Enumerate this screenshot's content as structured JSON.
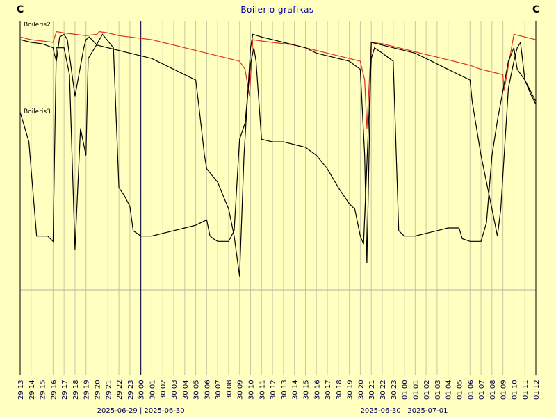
{
  "chart_data": {
    "type": "line",
    "title": "Boilerio grafikas",
    "corner_left": "C",
    "corner_right": "C",
    "xlabel": "",
    "ylabel": "",
    "grid": true,
    "x_ticks": [
      "29 13",
      "29 14",
      "29 15",
      "29 16",
      "29 17",
      "29 18",
      "29 19",
      "29 20",
      "29 21",
      "29 22",
      "29 23",
      "30 00",
      "30 01",
      "30 02",
      "30 03",
      "30 04",
      "30 05",
      "30 06",
      "30 07",
      "30 08",
      "30 09",
      "30 10",
      "30 11",
      "30 12",
      "30 13",
      "30 14",
      "30 15",
      "30 16",
      "30 17",
      "30 18",
      "30 19",
      "30 20",
      "30 21",
      "30 22",
      "30 23",
      "01 00",
      "01 01",
      "01 02",
      "01 03",
      "01 04",
      "01 05",
      "01 06",
      "01 07",
      "01 08",
      "01 09",
      "01 10",
      "01 11",
      "01 12"
    ],
    "day_markers": [
      {
        "at_hour": 11,
        "label": "2025-06-29 | 2025-06-30"
      },
      {
        "at_hour": 35,
        "label": "2025-06-30 | 2025-07-01"
      }
    ],
    "series": [
      {
        "name": "Boileris2",
        "color": "#e03020",
        "points": [
          [
            0,
            0.94
          ],
          [
            1,
            0.93
          ],
          [
            2,
            0.925
          ],
          [
            3,
            0.92
          ],
          [
            3.3,
            0.96
          ],
          [
            4,
            0.955
          ],
          [
            5,
            0.95
          ],
          [
            6,
            0.945
          ],
          [
            7,
            0.95
          ],
          [
            7.2,
            0.96
          ],
          [
            8,
            0.955
          ],
          [
            9,
            0.945
          ],
          [
            10,
            0.94
          ],
          [
            11,
            0.935
          ],
          [
            12,
            0.93
          ],
          [
            13,
            0.92
          ],
          [
            14,
            0.91
          ],
          [
            15,
            0.9
          ],
          [
            16,
            0.89
          ],
          [
            17,
            0.88
          ],
          [
            18,
            0.87
          ],
          [
            19,
            0.86
          ],
          [
            20,
            0.85
          ],
          [
            20.5,
            0.82
          ],
          [
            20.9,
            0.72
          ],
          [
            21.2,
            0.93
          ],
          [
            22,
            0.925
          ],
          [
            23,
            0.92
          ],
          [
            24,
            0.915
          ],
          [
            25,
            0.91
          ],
          [
            26,
            0.9
          ],
          [
            27,
            0.89
          ],
          [
            28,
            0.88
          ],
          [
            29,
            0.87
          ],
          [
            30,
            0.86
          ],
          [
            31,
            0.85
          ],
          [
            31.4,
            0.78
          ],
          [
            31.6,
            0.6
          ],
          [
            32,
            0.92
          ],
          [
            33,
            0.915
          ],
          [
            34,
            0.905
          ],
          [
            35,
            0.895
          ],
          [
            36,
            0.885
          ],
          [
            37,
            0.875
          ],
          [
            38,
            0.865
          ],
          [
            39,
            0.855
          ],
          [
            40,
            0.845
          ],
          [
            41,
            0.835
          ],
          [
            42,
            0.82
          ],
          [
            43,
            0.81
          ],
          [
            44,
            0.8
          ],
          [
            44.1,
            0.74
          ],
          [
            45,
            0.95
          ],
          [
            46,
            0.94
          ],
          [
            47,
            0.93
          ]
        ]
      },
      {
        "name": "Boileris3",
        "color": "#000000",
        "points": [
          [
            0,
            0.93
          ],
          [
            1,
            0.92
          ],
          [
            2,
            0.915
          ],
          [
            3,
            0.9
          ],
          [
            3.1,
            0.88
          ],
          [
            3.3,
            0.85
          ],
          [
            3.6,
            0.94
          ],
          [
            4,
            0.95
          ],
          [
            4.3,
            0.93
          ],
          [
            5,
            0.72
          ],
          [
            5.8,
            0.9
          ],
          [
            6,
            0.93
          ],
          [
            6.3,
            0.94
          ],
          [
            7,
            0.91
          ],
          [
            8,
            0.9
          ],
          [
            9,
            0.89
          ],
          [
            10,
            0.88
          ],
          [
            11,
            0.87
          ],
          [
            12,
            0.86
          ],
          [
            13,
            0.84
          ],
          [
            14,
            0.82
          ],
          [
            15,
            0.8
          ],
          [
            16,
            0.78
          ],
          [
            16.3,
            0.68
          ],
          [
            16.8,
            0.5
          ],
          [
            17,
            0.45
          ],
          [
            18,
            0.4
          ],
          [
            18.5,
            0.35
          ],
          [
            19,
            0.3
          ],
          [
            19.5,
            0.2
          ],
          [
            20,
            0.05
          ],
          [
            20.4,
            0.5
          ],
          [
            21,
            0.9
          ],
          [
            21.2,
            0.95
          ],
          [
            22,
            0.94
          ],
          [
            23,
            0.93
          ],
          [
            24,
            0.92
          ],
          [
            25,
            0.91
          ],
          [
            26,
            0.9
          ],
          [
            27,
            0.88
          ],
          [
            28,
            0.87
          ],
          [
            29,
            0.86
          ],
          [
            30,
            0.85
          ],
          [
            31,
            0.82
          ],
          [
            31.4,
            0.5
          ],
          [
            31.6,
            0.1
          ],
          [
            32,
            0.92
          ],
          [
            33,
            0.91
          ],
          [
            34,
            0.9
          ],
          [
            35,
            0.89
          ],
          [
            36,
            0.88
          ],
          [
            37,
            0.86
          ],
          [
            38,
            0.84
          ],
          [
            39,
            0.82
          ],
          [
            40,
            0.8
          ],
          [
            41,
            0.78
          ],
          [
            41.2,
            0.7
          ],
          [
            42,
            0.5
          ],
          [
            42.5,
            0.4
          ],
          [
            43,
            0.3
          ],
          [
            43.5,
            0.2
          ],
          [
            43.8,
            0.3
          ],
          [
            44.5,
            0.75
          ],
          [
            45,
            0.85
          ],
          [
            45.3,
            0.9
          ],
          [
            45.6,
            0.92
          ],
          [
            46,
            0.78
          ],
          [
            46.5,
            0.73
          ],
          [
            47,
            0.69
          ]
        ]
      },
      {
        "name": "",
        "color": "#000000",
        "points": [
          [
            0,
            0.66
          ],
          [
            0.3,
            0.62
          ],
          [
            0.8,
            0.55
          ],
          [
            1.2,
            0.35
          ],
          [
            1.5,
            0.2
          ],
          [
            2,
            0.2
          ],
          [
            2.5,
            0.2
          ],
          [
            3,
            0.18
          ],
          [
            3.3,
            0.9
          ],
          [
            4,
            0.9
          ],
          [
            4.5,
            0.8
          ],
          [
            5,
            0.15
          ],
          [
            5.5,
            0.6
          ],
          [
            6,
            0.5
          ],
          [
            6.2,
            0.86
          ],
          [
            6.8,
            0.9
          ],
          [
            7.5,
            0.95
          ],
          [
            8.5,
            0.9
          ],
          [
            9,
            0.38
          ],
          [
            9.5,
            0.35
          ],
          [
            10,
            0.31
          ],
          [
            10.3,
            0.22
          ],
          [
            11,
            0.2
          ],
          [
            12,
            0.2
          ],
          [
            13,
            0.21
          ],
          [
            14,
            0.22
          ],
          [
            15,
            0.23
          ],
          [
            16,
            0.24
          ],
          [
            17,
            0.26
          ],
          [
            17.3,
            0.2
          ],
          [
            17.6,
            0.19
          ],
          [
            18,
            0.18
          ],
          [
            19,
            0.18
          ],
          [
            19.5,
            0.22
          ],
          [
            20,
            0.56
          ],
          [
            20.5,
            0.62
          ],
          [
            21,
            0.84
          ],
          [
            21.3,
            0.9
          ],
          [
            21.5,
            0.85
          ],
          [
            22,
            0.56
          ],
          [
            23,
            0.55
          ],
          [
            24,
            0.55
          ],
          [
            25,
            0.54
          ],
          [
            26,
            0.53
          ],
          [
            27,
            0.5
          ],
          [
            28,
            0.45
          ],
          [
            29,
            0.38
          ],
          [
            30,
            0.32
          ],
          [
            30.5,
            0.3
          ],
          [
            31,
            0.2
          ],
          [
            31.3,
            0.17
          ],
          [
            32,
            0.86
          ],
          [
            32.3,
            0.9
          ],
          [
            33,
            0.88
          ],
          [
            34,
            0.85
          ],
          [
            34.5,
            0.22
          ],
          [
            35,
            0.2
          ],
          [
            36,
            0.2
          ],
          [
            37,
            0.21
          ],
          [
            38,
            0.22
          ],
          [
            39,
            0.23
          ],
          [
            40,
            0.23
          ],
          [
            40.3,
            0.19
          ],
          [
            41,
            0.18
          ],
          [
            42,
            0.18
          ],
          [
            42.5,
            0.25
          ],
          [
            43,
            0.5
          ],
          [
            43.5,
            0.63
          ],
          [
            44,
            0.74
          ],
          [
            44.5,
            0.85
          ],
          [
            45,
            0.9
          ],
          [
            45.3,
            0.82
          ],
          [
            46,
            0.78
          ],
          [
            46.5,
            0.74
          ],
          [
            47,
            0.7
          ]
        ]
      }
    ]
  }
}
